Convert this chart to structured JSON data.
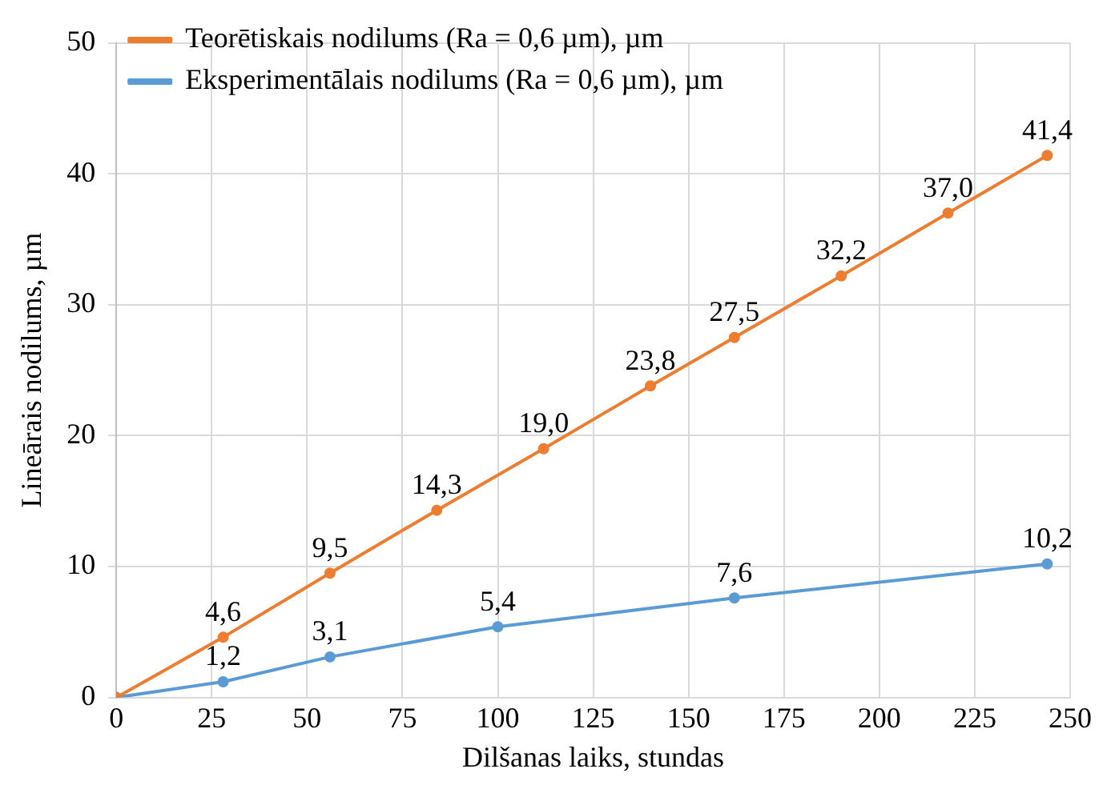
{
  "chart_data": {
    "type": "line",
    "xlabel": "Dilšanas laiks, stundas",
    "ylabel": "Lineārais nodilums, µm",
    "xlim": [
      0,
      250
    ],
    "xticks": [
      0,
      25,
      50,
      75,
      100,
      125,
      150,
      175,
      200,
      225,
      250
    ],
    "ylim": [
      0,
      50
    ],
    "yticks": [
      0,
      10,
      20,
      30,
      40,
      50
    ],
    "grid": true,
    "legend": "top left",
    "marker": "circle",
    "line_style": "solid",
    "data_labels": true,
    "series": [
      {
        "name": "Teorētiskais nodilums (Ra = 0,6 µm), µm",
        "color": "#ed7d31",
        "x": [
          0,
          28,
          56,
          84,
          112,
          140,
          162,
          190,
          218,
          244
        ],
        "values": [
          0,
          4.6,
          9.5,
          14.3,
          19.0,
          23.8,
          27.5,
          32.2,
          37.0,
          41.4
        ],
        "value_labels": [
          null,
          "4,6",
          "9,5",
          "14,3",
          "19,0",
          "23,8",
          "27,5",
          "32,2",
          "37,0",
          "41,4"
        ]
      },
      {
        "name": "Eksperimentālais nodilums (Ra = 0,6 µm), µm",
        "color": "#5b9bd5",
        "x": [
          0,
          28,
          56,
          100,
          162,
          244
        ],
        "values": [
          0,
          1.2,
          3.1,
          5.4,
          7.6,
          10.2
        ],
        "value_labels": [
          null,
          "1,2",
          "3,1",
          "5,4",
          "7,6",
          "10,2"
        ]
      }
    ]
  }
}
